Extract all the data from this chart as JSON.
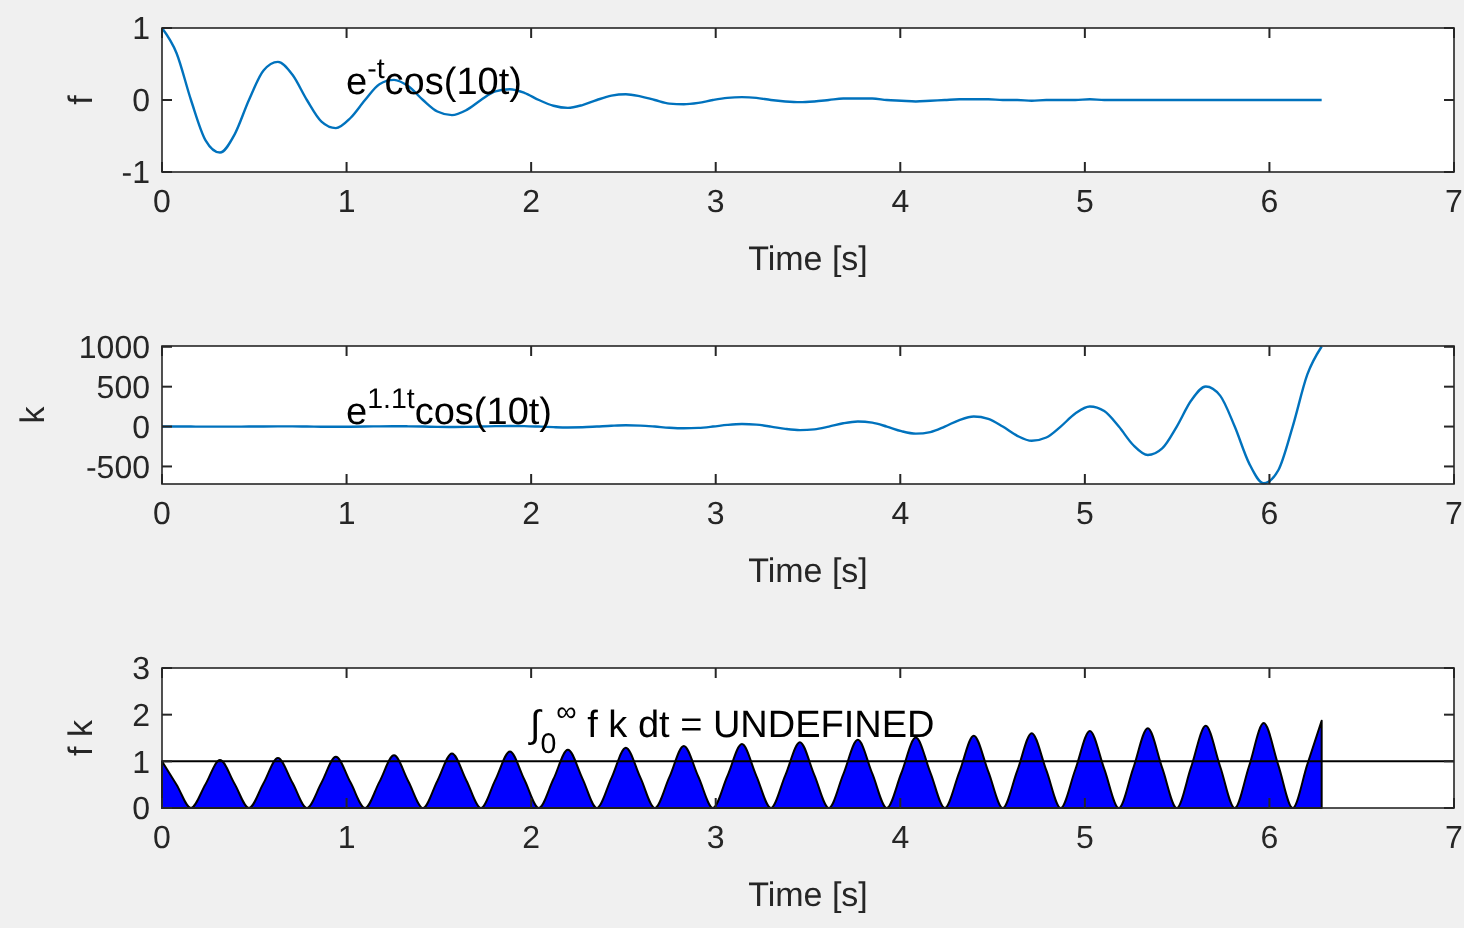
{
  "chart_data": [
    {
      "type": "line",
      "xlabel": "Time [s]",
      "ylabel": "f",
      "annotations": [
        "e$^{-t}$cos(10t)"
      ],
      "xlim": [
        0,
        7
      ],
      "xticks": [
        0,
        1,
        2,
        3,
        4,
        5,
        6,
        7
      ],
      "ylim": [
        -1,
        1
      ],
      "yticks": [
        -1,
        0,
        1
      ],
      "x": [
        0,
        0.079,
        0.157,
        0.236,
        0.314,
        0.393,
        0.471,
        0.55,
        0.628,
        0.707,
        0.785,
        0.864,
        0.942,
        1.021,
        1.1,
        1.178,
        1.257,
        1.335,
        1.414,
        1.492,
        1.571,
        1.649,
        1.728,
        1.806,
        1.885,
        1.963,
        2.042,
        2.121,
        2.199,
        2.278,
        2.356,
        2.435,
        2.513,
        2.592,
        2.67,
        2.749,
        2.827,
        2.906,
        2.985,
        3.063,
        3.142,
        3.22,
        3.299,
        3.377,
        3.456,
        3.534,
        3.613,
        3.691,
        3.77,
        3.848,
        3.927,
        4.006,
        4.084,
        4.163,
        4.241,
        4.32,
        4.398,
        4.477,
        4.555,
        4.634,
        4.712,
        4.791,
        4.869,
        4.948,
        5.027,
        5.105,
        5.184,
        5.262,
        5.341,
        5.419,
        5.498,
        5.576,
        5.655,
        5.733,
        5.812,
        5.89,
        5.969,
        6.048,
        6.126,
        6.205,
        6.283
      ],
      "series": [
        {
          "color": "#0072bd",
          "values": [
            1,
            0.65,
            0,
            -0.56,
            -0.73,
            -0.48,
            0,
            0.41,
            0.53,
            0.35,
            0,
            -0.3,
            -0.39,
            -0.25,
            0,
            0.22,
            0.28,
            0.19,
            0,
            -0.16,
            -0.21,
            -0.14,
            0,
            0.12,
            0.15,
            0.1,
            0,
            -0.08,
            -0.11,
            -0.07,
            0,
            0.06,
            0.08,
            0.05,
            0,
            -0.05,
            -0.06,
            -0.04,
            0,
            0.03,
            0.04,
            0.03,
            0,
            -0.02,
            -0.03,
            -0.02,
            0,
            0.02,
            0.02,
            0.02,
            0,
            -0.01,
            -0.02,
            -0.01,
            0,
            0.01,
            0.01,
            0.01,
            0,
            0,
            -0.01,
            0,
            0,
            0,
            0.01,
            0,
            0,
            0,
            0,
            0,
            0,
            0,
            0,
            0,
            0,
            0,
            0,
            0,
            0,
            0,
            0
          ]
        }
      ]
    },
    {
      "type": "line",
      "xlabel": "Time [s]",
      "ylabel": "k",
      "annotations": [
        "e$^{1.1t}$cos(10t)"
      ],
      "xlim": [
        0,
        7
      ],
      "xticks": [
        0,
        1,
        2,
        3,
        4,
        5,
        6,
        7
      ],
      "ylim": [
        -720,
        1010
      ],
      "yticks": [
        -500,
        0,
        500,
        1000
      ],
      "x": [
        0,
        0.079,
        0.157,
        0.236,
        0.314,
        0.393,
        0.471,
        0.55,
        0.628,
        0.707,
        0.785,
        0.864,
        0.942,
        1.021,
        1.1,
        1.178,
        1.257,
        1.335,
        1.414,
        1.492,
        1.571,
        1.649,
        1.728,
        1.806,
        1.885,
        1.963,
        2.042,
        2.121,
        2.199,
        2.278,
        2.356,
        2.435,
        2.513,
        2.592,
        2.67,
        2.749,
        2.827,
        2.906,
        2.985,
        3.063,
        3.142,
        3.22,
        3.299,
        3.377,
        3.456,
        3.534,
        3.613,
        3.691,
        3.77,
        3.848,
        3.927,
        4.006,
        4.084,
        4.163,
        4.241,
        4.32,
        4.398,
        4.477,
        4.555,
        4.634,
        4.712,
        4.791,
        4.869,
        4.948,
        5.027,
        5.105,
        5.184,
        5.262,
        5.341,
        5.419,
        5.498,
        5.576,
        5.655,
        5.733,
        5.812,
        5.89,
        5.969,
        6.048,
        6.126,
        6.205,
        6.283
      ],
      "series": [
        {
          "color": "#0072bd",
          "values": [
            1,
            1,
            0,
            -1,
            -1,
            -1,
            0,
            1,
            2,
            2,
            0,
            -2,
            -3,
            -2,
            0,
            3,
            4,
            3,
            0,
            -4,
            -6,
            -4,
            0,
            5,
            8,
            6,
            0,
            -7,
            -11,
            -9,
            0,
            10,
            16,
            12,
            0,
            -15,
            -22,
            -17,
            0,
            21,
            32,
            24,
            0,
            -29,
            -45,
            -35,
            0,
            41,
            63,
            49,
            0,
            -58,
            -89,
            -69,
            0,
            82,
            126,
            97,
            0,
            -116,
            -178,
            -137,
            0,
            163,
            252,
            194,
            0,
            -231,
            -356,
            -274,
            0,
            326,
            503,
            388,
            0,
            -461,
            -711,
            -548,
            0,
            651,
            1004
          ]
        }
      ]
    },
    {
      "type": "area",
      "xlabel": "Time [s]",
      "ylabel": "f k",
      "annotations": [
        "∫$_{0}$$^{∞}$  f k dt = UNDEFINED"
      ],
      "xlim": [
        0,
        7
      ],
      "xticks": [
        0,
        1,
        2,
        3,
        4,
        5,
        6,
        7
      ],
      "ylim": [
        0,
        3
      ],
      "yticks": [
        0,
        1,
        2,
        3
      ],
      "ref_lines": [
        {
          "axis": "y",
          "value": 1,
          "color": "#000000"
        }
      ],
      "x": [
        0,
        0.079,
        0.157,
        0.236,
        0.314,
        0.393,
        0.471,
        0.55,
        0.628,
        0.707,
        0.785,
        0.864,
        0.942,
        1.021,
        1.1,
        1.178,
        1.257,
        1.335,
        1.414,
        1.492,
        1.571,
        1.649,
        1.728,
        1.806,
        1.885,
        1.963,
        2.042,
        2.121,
        2.199,
        2.278,
        2.356,
        2.435,
        2.513,
        2.592,
        2.67,
        2.749,
        2.827,
        2.906,
        2.985,
        3.063,
        3.142,
        3.22,
        3.299,
        3.377,
        3.456,
        3.534,
        3.613,
        3.691,
        3.77,
        3.848,
        3.927,
        4.006,
        4.084,
        4.163,
        4.241,
        4.32,
        4.398,
        4.477,
        4.555,
        4.634,
        4.712,
        4.791,
        4.869,
        4.948,
        5.027,
        5.105,
        5.184,
        5.262,
        5.341,
        5.419,
        5.498,
        5.576,
        5.655,
        5.733,
        5.812,
        5.89,
        5.969,
        6.048,
        6.126,
        6.205,
        6.283
      ],
      "series": [
        {
          "color": "#0000ff",
          "values": [
            1,
            0.5,
            0,
            0.51,
            1.03,
            0.52,
            0,
            0.53,
            1.07,
            0.54,
            0,
            0.54,
            1.1,
            0.55,
            0,
            0.56,
            1.13,
            0.57,
            0,
            0.58,
            1.17,
            0.59,
            0,
            0.6,
            1.21,
            0.61,
            0,
            0.62,
            1.25,
            0.63,
            0,
            0.64,
            1.29,
            0.65,
            0,
            0.66,
            1.33,
            0.67,
            0,
            0.68,
            1.37,
            0.69,
            0,
            0.7,
            1.41,
            0.71,
            0,
            0.72,
            1.46,
            0.74,
            0,
            0.75,
            1.51,
            0.76,
            0,
            0.77,
            1.55,
            0.78,
            0,
            0.8,
            1.6,
            0.81,
            0,
            0.82,
            1.65,
            0.84,
            0,
            0.85,
            1.71,
            0.86,
            0,
            0.88,
            1.76,
            0.89,
            0,
            0.9,
            1.82,
            0.92,
            0,
            0.93,
            1.87
          ]
        }
      ]
    }
  ]
}
